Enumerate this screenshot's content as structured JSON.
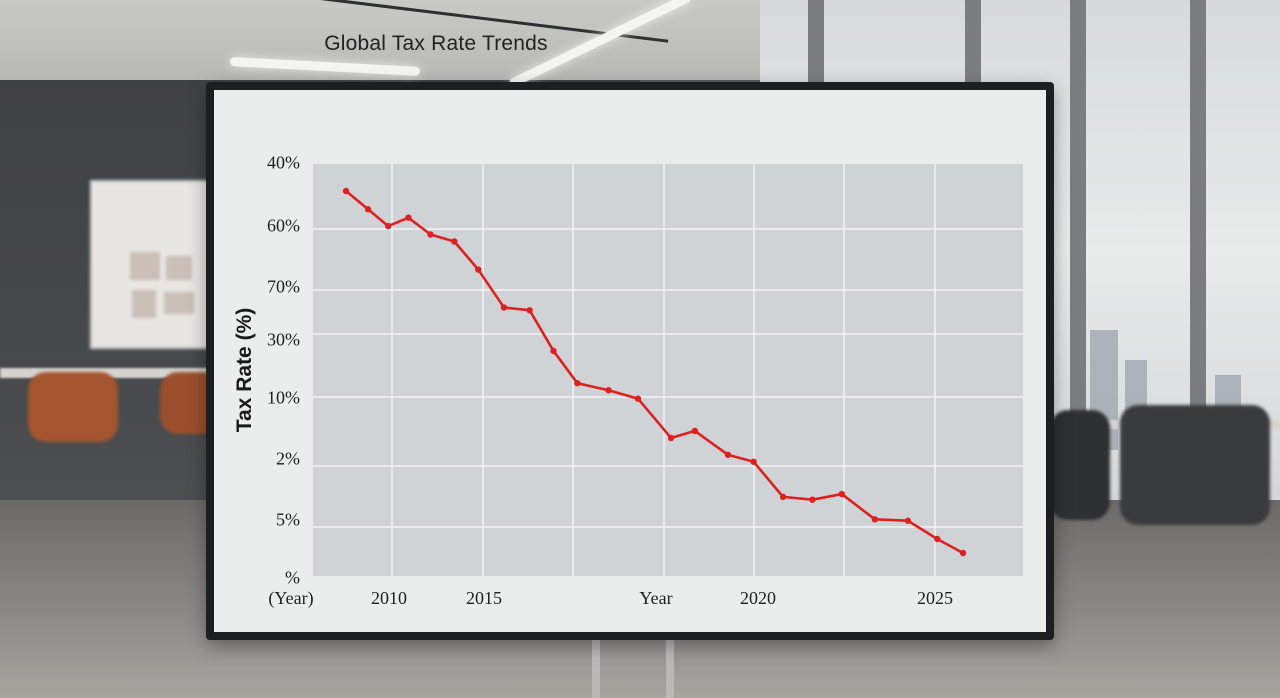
{
  "chart_data": {
    "type": "line",
    "title": "Global Tax Rate Trends",
    "ylabel": "Tax Rate (%)",
    "ytick_labels": [
      "40%",
      "60%",
      "70%",
      "30%",
      "10%",
      "2%",
      "5%",
      "%"
    ],
    "xtick_labels": [
      "(Year)",
      "2010",
      "2015",
      "Year",
      "2020",
      "2025"
    ],
    "grid": true,
    "series": [
      {
        "color": "#e02020",
        "points": [
          {
            "x": 2008.6,
            "y": 1.0
          },
          {
            "x": 2009.8,
            "y": 0.935
          },
          {
            "x": 2010.9,
            "y": 0.875
          },
          {
            "x": 2012.0,
            "y": 0.905
          },
          {
            "x": 2013.2,
            "y": 0.845
          },
          {
            "x": 2014.5,
            "y": 0.82
          },
          {
            "x": 2015.8,
            "y": 0.72
          },
          {
            "x": 2017.2,
            "y": 0.585
          },
          {
            "x": 2018.6,
            "y": 0.575
          },
          {
            "x": 2019.9,
            "y": 0.43
          },
          {
            "x": 2021.2,
            "y": 0.315
          },
          {
            "x": 2022.9,
            "y": 0.29
          },
          {
            "x": 2024.5,
            "y": 0.26
          },
          {
            "x": 2026.3,
            "y": 0.12
          },
          {
            "x": 2027.6,
            "y": 0.145
          },
          {
            "x": 2029.4,
            "y": 0.06
          },
          {
            "x": 2030.8,
            "y": 0.035
          },
          {
            "x": 2032.4,
            "y": -0.09
          },
          {
            "x": 2034.0,
            "y": -0.1
          },
          {
            "x": 2035.6,
            "y": -0.08
          },
          {
            "x": 2037.4,
            "y": -0.17
          },
          {
            "x": 2039.2,
            "y": -0.175
          },
          {
            "x": 2040.8,
            "y": -0.24
          },
          {
            "x": 2042.2,
            "y": -0.29
          }
        ]
      }
    ]
  },
  "colors": {
    "line": "#e02020",
    "plot_background": "#cfd3d6",
    "grid": "#f2f3f4",
    "screen": "#ebecec",
    "bezel": "#1d1e20"
  }
}
